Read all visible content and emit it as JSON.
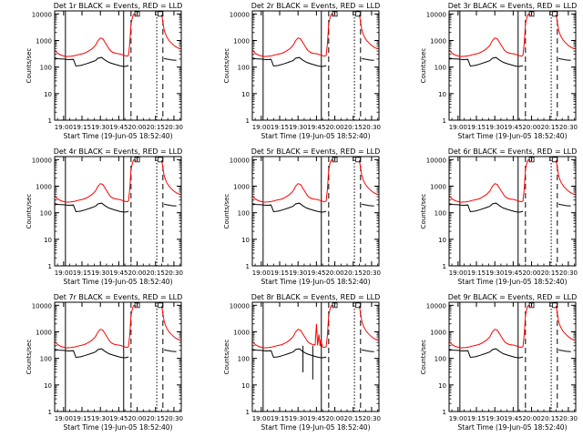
{
  "chart_data": {
    "type": "line",
    "shared": {
      "xlabel": "Start Time (19-Jun-05 18:52:40)",
      "ylabel": "Counts/sec",
      "x_ticks": [
        "19:00",
        "19:15",
        "19:30",
        "19:45",
        "20:00",
        "20:15",
        "20:30"
      ],
      "x_tick_minutes": [
        0,
        15,
        30,
        45,
        60,
        75,
        90
      ],
      "xlim_minutes_after_19_00": [
        -7.3,
        96
      ],
      "y_scale": "log",
      "ylim": [
        1,
        13000
      ],
      "y_ticks": [
        "1",
        "10",
        "100",
        "1000",
        "10000"
      ],
      "grid": false,
      "colors": {
        "black_series": "#000000",
        "red_series": "#ff0000",
        "axes": "#000000"
      },
      "vertical_markers": [
        {
          "style": "solid",
          "minute": 1.5
        },
        {
          "style": "solid",
          "minute": 49
        },
        {
          "style": "dashed",
          "minute": 55
        },
        {
          "style": "dotted",
          "minute": 76
        },
        {
          "style": "dashed",
          "minute": 81
        }
      ],
      "black_series_points": [
        [
          -7,
          220
        ],
        [
          -4,
          205
        ],
        [
          0,
          200
        ],
        [
          4,
          190
        ],
        [
          8,
          195
        ],
        [
          10,
          110
        ],
        [
          14,
          115
        ],
        [
          18,
          130
        ],
        [
          22,
          150
        ],
        [
          26,
          175
        ],
        [
          28,
          215
        ],
        [
          31,
          230
        ],
        [
          34,
          180
        ],
        [
          37,
          150
        ],
        [
          40,
          135
        ],
        [
          43,
          122
        ],
        [
          46,
          112
        ],
        [
          48,
          108
        ],
        [
          50,
          105
        ],
        [
          52,
          110
        ],
        [
          53,
          115
        ]
      ],
      "black_tail_points": [
        [
          82,
          210
        ],
        [
          84,
          200
        ],
        [
          86,
          195
        ],
        [
          88,
          185
        ],
        [
          92,
          180
        ]
      ],
      "red_series_points": [
        [
          -7,
          430
        ],
        [
          -5,
          330
        ],
        [
          -2,
          280
        ],
        [
          2,
          250
        ],
        [
          6,
          255
        ],
        [
          9,
          270
        ],
        [
          13,
          300
        ],
        [
          17,
          330
        ],
        [
          20,
          390
        ],
        [
          23,
          480
        ],
        [
          26,
          660
        ],
        [
          28,
          980
        ],
        [
          30,
          1250
        ],
        [
          32,
          1150
        ],
        [
          34,
          820
        ],
        [
          36,
          580
        ],
        [
          38,
          420
        ],
        [
          40,
          360
        ],
        [
          42,
          330
        ],
        [
          44,
          320
        ],
        [
          46,
          310
        ],
        [
          48,
          290
        ],
        [
          50,
          270
        ],
        [
          52,
          260
        ],
        [
          53,
          280
        ],
        [
          54,
          800
        ],
        [
          55,
          4000
        ],
        [
          56,
          7000
        ],
        [
          57,
          9500
        ],
        [
          58,
          10000
        ],
        [
          59,
          9000
        ]
      ],
      "red_tail_points": [
        [
          80,
          9500
        ],
        [
          81,
          5000
        ],
        [
          82,
          2500
        ],
        [
          83,
          1800
        ],
        [
          84,
          1400
        ],
        [
          86,
          1000
        ],
        [
          88,
          800
        ],
        [
          90,
          650
        ],
        [
          92,
          560
        ],
        [
          95,
          480
        ]
      ],
      "square_markers": [
        [
          60,
          10000
        ],
        [
          79,
          10000
        ]
      ]
    },
    "panels": [
      {
        "title": "Det 1r BLACK = Events, RED = LLD"
      },
      {
        "title": "Det 2r BLACK = Events, RED = LLD"
      },
      {
        "title": "Det 3r BLACK = Events, RED = LLD"
      },
      {
        "title": "Det 4r BLACK = Events, RED = LLD"
      },
      {
        "title": "Det 5r BLACK = Events, RED = LLD"
      },
      {
        "title": "Det 6r BLACK = Events, RED = LLD"
      },
      {
        "title": "Det 7r BLACK = Events, RED = LLD"
      },
      {
        "title": "Det 8r BLACK = Events, RED = LLD",
        "spikes": [
          [
            34,
            30
          ],
          [
            42,
            16
          ],
          [
            45,
            2000
          ],
          [
            47,
            800
          ],
          [
            48.5,
            500
          ]
        ]
      },
      {
        "title": "Det 9r BLACK = Events, RED = LLD"
      }
    ]
  }
}
